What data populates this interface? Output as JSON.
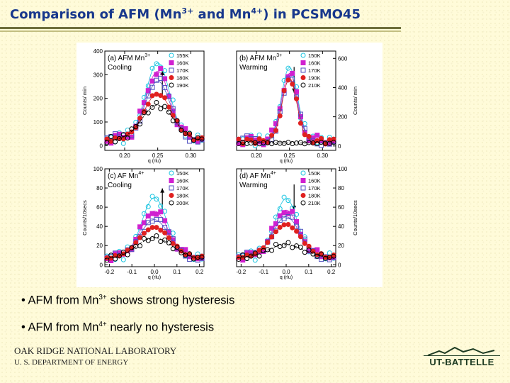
{
  "header": {
    "title_pre": "Comparison of AFM (Mn",
    "sup1": "3+",
    "title_mid": " and Mn",
    "sup2": "4+",
    "title_post": ") in PCSMO45"
  },
  "bullets": [
    {
      "pre": "• AFM from Mn",
      "sup": "3+",
      "post": " shows strong hysteresis"
    },
    {
      "pre": "• AFM from Mn",
      "sup": "4+",
      "post": " nearly no hysteresis"
    }
  ],
  "footer": {
    "lab_line1": "OAK RIDGE NATIONAL LABORATORY",
    "lab_line2": "U. S. DEPARTMENT OF ENERGY",
    "logo_text": "UT-BATTELLE"
  },
  "colors": {
    "title": "#17378c",
    "series": [
      "#18c4e0",
      "#d020d0",
      "#5050c0",
      "#e02020",
      "#000000"
    ]
  },
  "chart_data": [
    {
      "type": "scatter",
      "panel": "a",
      "label_pre": "(a) AFM Mn",
      "label_sup": "3+",
      "label_sub": "Cooling",
      "arrow": "up",
      "xlabel": "q (rlu)",
      "ylabel": "Counts/ min",
      "xlim": [
        0.17,
        0.32
      ],
      "ylim": [
        -20,
        400
      ],
      "xticks": [
        "0.20",
        "0.25",
        "0.30"
      ],
      "yticks": [
        "0",
        "100",
        "200",
        "300",
        "400"
      ],
      "yaxis_side": "left",
      "series": [
        {
          "name": "155K",
          "marker": "circle-open",
          "peak": 320,
          "bg": 30,
          "width": 0.018
        },
        {
          "name": "160K",
          "marker": "square-filled",
          "peak": 285,
          "bg": 30,
          "width": 0.018
        },
        {
          "name": "170K",
          "marker": "square-open",
          "peak": 245,
          "bg": 28,
          "width": 0.019
        },
        {
          "name": "180K",
          "marker": "circle-filled",
          "peak": 195,
          "bg": 25,
          "width": 0.021
        },
        {
          "name": "190K",
          "marker": "circle-open-black",
          "peak": 150,
          "bg": 22,
          "width": 0.024
        }
      ]
    },
    {
      "type": "scatter",
      "panel": "b",
      "label_pre": "(b) AFM Mn",
      "label_sup": "3+",
      "label_sub": "Warming",
      "arrow": "down",
      "xlabel": "q (rlu)",
      "ylabel": "Counts/ min",
      "xlim": [
        0.17,
        0.32
      ],
      "ylim": [
        -30,
        650
      ],
      "xticks": [
        "0.20",
        "0.25",
        "0.30"
      ],
      "yticks": [
        "0",
        "200",
        "400",
        "600"
      ],
      "yaxis_side": "right",
      "series": [
        {
          "name": "150K",
          "marker": "circle-open",
          "peak": 500,
          "bg": 40,
          "width": 0.012
        },
        {
          "name": "160K",
          "marker": "square-filled",
          "peak": 460,
          "bg": 38,
          "width": 0.012
        },
        {
          "name": "170K",
          "marker": "square-open",
          "peak": 420,
          "bg": 35,
          "width": 0.012
        },
        {
          "name": "190K",
          "marker": "circle-filled",
          "peak": 430,
          "bg": 35,
          "width": 0.011
        },
        {
          "name": "210K",
          "marker": "circle-open-black",
          "peak": 0,
          "bg": 20,
          "width": 0.02
        }
      ]
    },
    {
      "type": "scatter",
      "panel": "c",
      "label_pre": "(c) AF Mn",
      "label_sup": "4+",
      "label_sub": "Cooling",
      "arrow": "up",
      "xlabel": "q (rlu)",
      "ylabel": "Counts/10secs",
      "xlim": [
        -0.22,
        0.22
      ],
      "ylim": [
        -2,
        100
      ],
      "xticks": [
        "-0.2",
        "-0.1",
        "0.0",
        "0.1",
        "0.2"
      ],
      "yticks": [
        "0",
        "20",
        "40",
        "60",
        "80",
        "100"
      ],
      "yaxis_side": "left",
      "series": [
        {
          "name": "150K",
          "marker": "circle-open",
          "peak": 62,
          "bg": 8,
          "width": 0.055
        },
        {
          "name": "160K",
          "marker": "square-filled",
          "peak": 48,
          "bg": 8,
          "width": 0.06
        },
        {
          "name": "170K",
          "marker": "square-open",
          "peak": 40,
          "bg": 7,
          "width": 0.065
        },
        {
          "name": "180K",
          "marker": "circle-filled",
          "peak": 32,
          "bg": 7,
          "width": 0.07
        },
        {
          "name": "200K",
          "marker": "circle-open-black",
          "peak": 22,
          "bg": 6,
          "width": 0.08
        }
      ]
    },
    {
      "type": "scatter",
      "panel": "d",
      "label_pre": "(d) AF Mn",
      "label_sup": "4+",
      "label_sub": "Warming",
      "arrow": "down",
      "xlabel": "q (rlu)",
      "ylabel": "Counts/10secs",
      "xlim": [
        -0.22,
        0.22
      ],
      "ylim": [
        -2,
        100
      ],
      "xticks": [
        "-0.2",
        "-0.1",
        "0.0",
        "0.1",
        "0.2"
      ],
      "yticks": [
        "0",
        "20",
        "40",
        "60",
        "80",
        "100"
      ],
      "yaxis_side": "right",
      "series": [
        {
          "name": "150K",
          "marker": "circle-open",
          "peak": 60,
          "bg": 9,
          "width": 0.05
        },
        {
          "name": "160K",
          "marker": "square-filled",
          "peak": 48,
          "bg": 9,
          "width": 0.055
        },
        {
          "name": "170K",
          "marker": "square-open",
          "peak": 42,
          "bg": 8,
          "width": 0.06
        },
        {
          "name": "180K",
          "marker": "circle-filled",
          "peak": 34,
          "bg": 8,
          "width": 0.065
        },
        {
          "name": "210K",
          "marker": "circle-open-black",
          "peak": 14,
          "bg": 7,
          "width": 0.08
        }
      ]
    }
  ]
}
